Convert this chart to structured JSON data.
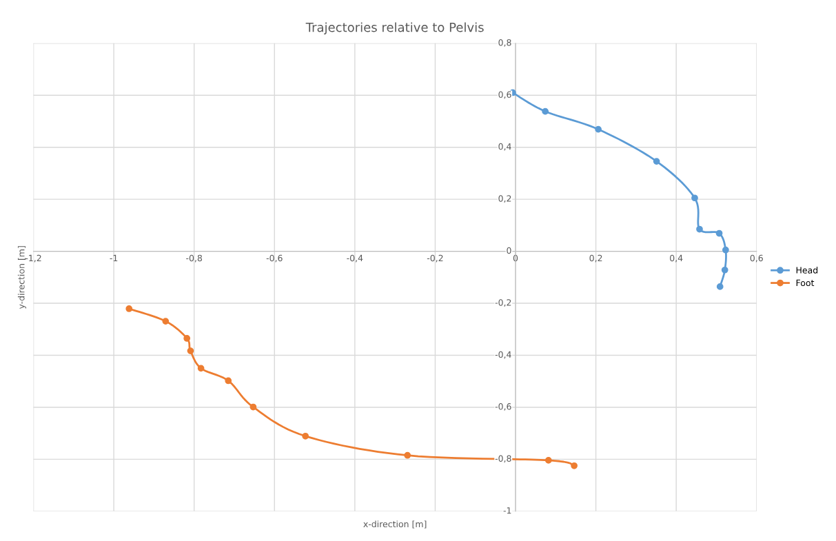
{
  "chart_data": {
    "type": "line",
    "title": "Trajectories relative to Pelvis",
    "xlabel": "x-direction [m]",
    "ylabel": "y-direction [m]",
    "series": [
      {
        "name": "Head",
        "color": "#5b9bd5",
        "x": [
          -0.007,
          0.074,
          0.206,
          0.351,
          0.446,
          0.458,
          0.507,
          0.523,
          0.521,
          0.509
        ],
        "values": [
          0.61,
          0.538,
          0.469,
          0.346,
          0.205,
          0.085,
          0.069,
          0.005,
          -0.072,
          -0.136
        ]
      },
      {
        "name": "Foot",
        "color": "#ed7d31",
        "x": [
          -0.962,
          -0.871,
          -0.818,
          -0.809,
          -0.783,
          -0.715,
          -0.653,
          -0.523,
          -0.269,
          0.082,
          0.146
        ],
        "values": [
          -0.221,
          -0.269,
          -0.335,
          -0.383,
          -0.45,
          -0.498,
          -0.599,
          -0.711,
          -0.785,
          -0.804,
          -0.825
        ]
      }
    ],
    "xlim": [
      -1.2,
      0.6
    ],
    "xticks": [
      {
        "value": -1.2,
        "label": "-1,2"
      },
      -1,
      {
        "value": -0.8,
        "label": "-0,8"
      },
      {
        "value": -0.6,
        "label": "-0,6"
      },
      {
        "value": -0.4,
        "label": "-0,4"
      },
      {
        "value": -0.2,
        "label": "-0,2"
      },
      0,
      {
        "value": 0.2,
        "label": "0,2"
      },
      {
        "value": 0.4,
        "label": "0,4"
      },
      {
        "value": 0.6,
        "label": "0,6"
      }
    ],
    "ylim": [
      -1,
      0.8
    ],
    "yticks": [
      -1,
      {
        "value": -0.8,
        "label": "-0,8"
      },
      {
        "value": -0.6,
        "label": "-0,6"
      },
      {
        "value": -0.4,
        "label": "-0,4"
      },
      {
        "value": -0.2,
        "label": "-0,2"
      },
      0,
      {
        "value": 0.2,
        "label": "0,2"
      },
      {
        "value": 0.4,
        "label": "0,4"
      },
      {
        "value": 0.6,
        "label": "0,6"
      },
      {
        "value": 0.8,
        "label": "0,8"
      }
    ],
    "grid": true,
    "legend": "right",
    "marker": "circle",
    "line_style": "solid"
  }
}
